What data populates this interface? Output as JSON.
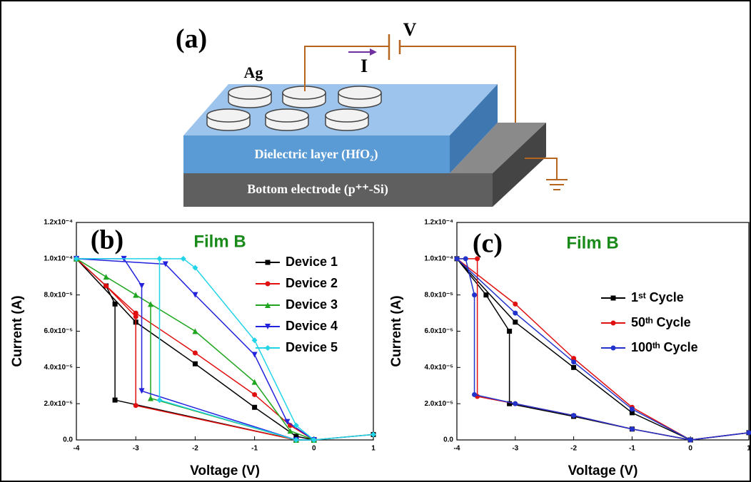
{
  "diagram": {
    "label": "(a)",
    "voltage": "V",
    "current": "I",
    "electrode": "Ag",
    "dielectric": "Dielectric layer (HfO₂)",
    "bottom": "Bottom electrode (p⁺⁺-Si)"
  },
  "chart_data": [
    {
      "type": "line",
      "annotations": [
        {
          "text": "(b)"
        },
        {
          "text": "Film B",
          "color": "#1a8a1a"
        }
      ],
      "x_label": "Voltage (V)",
      "y_label": "Current (A)",
      "xlim": [
        -4,
        1
      ],
      "xticks": [
        -4,
        -3,
        -2,
        -1,
        0,
        1
      ],
      "ylim": [
        0,
        0.00012
      ],
      "yticks": [
        {
          "value": 0,
          "label": "0.0"
        },
        {
          "value": 2e-05,
          "label": "2.0x10⁻⁵"
        },
        {
          "value": 4e-05,
          "label": "4.0x10⁻⁵"
        },
        {
          "value": 6e-05,
          "label": "6.0x10⁻⁵"
        },
        {
          "value": 8e-05,
          "label": "8.0x10⁻⁵"
        },
        {
          "value": 0.0001,
          "label": "1.0x10⁻⁴"
        },
        {
          "value": 0.00012,
          "label": "1.2x10⁻⁴"
        }
      ],
      "legend": "upper right",
      "series": [
        {
          "name": "Device 1",
          "color": "#000000",
          "marker": "square",
          "x": [
            1,
            0,
            -0.3,
            -3.35,
            -3.35,
            -3.5,
            -4,
            -3,
            -2,
            -1,
            -0.3,
            0
          ],
          "values": [
            3e-06,
            0,
            0,
            2.2e-05,
            7.5e-05,
            8.5e-05,
            0.0001,
            6.5e-05,
            4.2e-05,
            1.8e-05,
            2e-06,
            0
          ]
        },
        {
          "name": "Device 2",
          "color": "#e01010",
          "marker": "circle",
          "x": [
            0,
            -0.3,
            -3,
            -3,
            -3.5,
            -4,
            -3,
            -2,
            -1,
            -0.4,
            0
          ],
          "values": [
            0,
            0,
            1.9e-05,
            6.8e-05,
            8.5e-05,
            0.0001,
            7e-05,
            4.8e-05,
            2.5e-05,
            8e-06,
            0
          ]
        },
        {
          "name": "Device 3",
          "color": "#1fa51f",
          "marker": "triangle-up",
          "x": [
            0,
            -0.3,
            -2.75,
            -2.75,
            -3.5,
            -4,
            -3,
            -2,
            -1,
            -0.4,
            0
          ],
          "values": [
            0,
            0,
            2.3e-05,
            7.5e-05,
            9e-05,
            0.0001,
            8e-05,
            6e-05,
            3.2e-05,
            5e-06,
            0
          ]
        },
        {
          "name": "Device 4",
          "color": "#2222dd",
          "marker": "triangle-down",
          "x": [
            0,
            -0.3,
            -2.9,
            -2.9,
            -3.2,
            -4,
            -2.5,
            -2,
            -1,
            -0.45,
            0
          ],
          "values": [
            0,
            0,
            2.7e-05,
            8.5e-05,
            0.0001,
            0.0001,
            9.7e-05,
            8e-05,
            4.7e-05,
            1e-05,
            0
          ]
        },
        {
          "name": "Device 5",
          "color": "#22d4e8",
          "marker": "diamond",
          "x": [
            1,
            0,
            -0.3,
            -2.6,
            -2.6,
            -4,
            -2.2,
            -2,
            -1,
            -0.3,
            0
          ],
          "values": [
            3e-06,
            0,
            0,
            2.2e-05,
            0.0001,
            0.0001,
            0.0001,
            9.5e-05,
            5.5e-05,
            8e-06,
            0
          ]
        }
      ]
    },
    {
      "type": "line",
      "annotations": [
        {
          "text": "(c)"
        },
        {
          "text": "Film B",
          "color": "#1a8a1a"
        }
      ],
      "x_label": "Voltage (V)",
      "y_label": "Current (A)",
      "xlim": [
        -4,
        1
      ],
      "xticks": [
        -4,
        -3,
        -2,
        -1,
        0,
        1
      ],
      "ylim": [
        0,
        0.00012
      ],
      "yticks": [
        {
          "value": 0,
          "label": "0.0"
        },
        {
          "value": 2e-05,
          "label": "2.0x10⁻⁵"
        },
        {
          "value": 4e-05,
          "label": "4.0x10⁻⁵"
        },
        {
          "value": 6e-05,
          "label": "6.0x10⁻⁵"
        },
        {
          "value": 8e-05,
          "label": "8.0x10⁻⁵"
        },
        {
          "value": 0.0001,
          "label": "1.0x10⁻⁴"
        },
        {
          "value": 0.00012,
          "label": "1.2x10⁻⁴"
        }
      ],
      "legend": "center right",
      "series": [
        {
          "name": "1ˢᵗ Cycle",
          "color": "#000000",
          "marker": "square",
          "x": [
            1,
            0,
            -1,
            -2,
            -3.1,
            -3.1,
            -3.5,
            -4,
            -3,
            -2,
            -1,
            0
          ],
          "values": [
            4e-06,
            0,
            6e-06,
            1.3e-05,
            2e-05,
            6e-05,
            8e-05,
            0.0001,
            6.5e-05,
            4e-05,
            1.5e-05,
            0
          ]
        },
        {
          "name": "50ᵗʰ Cycle",
          "color": "#e01010",
          "marker": "circle",
          "x": [
            1,
            0,
            -1,
            -2,
            -3,
            -3.65,
            -3.65,
            -4,
            -3,
            -2,
            -1,
            0
          ],
          "values": [
            4e-06,
            0,
            6e-06,
            1.35e-05,
            2e-05,
            2.4e-05,
            0.0001,
            0.0001,
            7.5e-05,
            4.5e-05,
            1.8e-05,
            0
          ]
        },
        {
          "name": "100ᵗʰ Cycle",
          "color": "#2233cc",
          "marker": "circle",
          "x": [
            1,
            0,
            -1,
            -2,
            -3,
            -3.7,
            -3.7,
            -3.85,
            -4,
            -3,
            -2,
            -1,
            0
          ],
          "values": [
            4e-06,
            0,
            6e-06,
            1.35e-05,
            2e-05,
            2.5e-05,
            8e-05,
            0.0001,
            0.0001,
            7e-05,
            4.3e-05,
            1.7e-05,
            0
          ]
        }
      ]
    }
  ]
}
